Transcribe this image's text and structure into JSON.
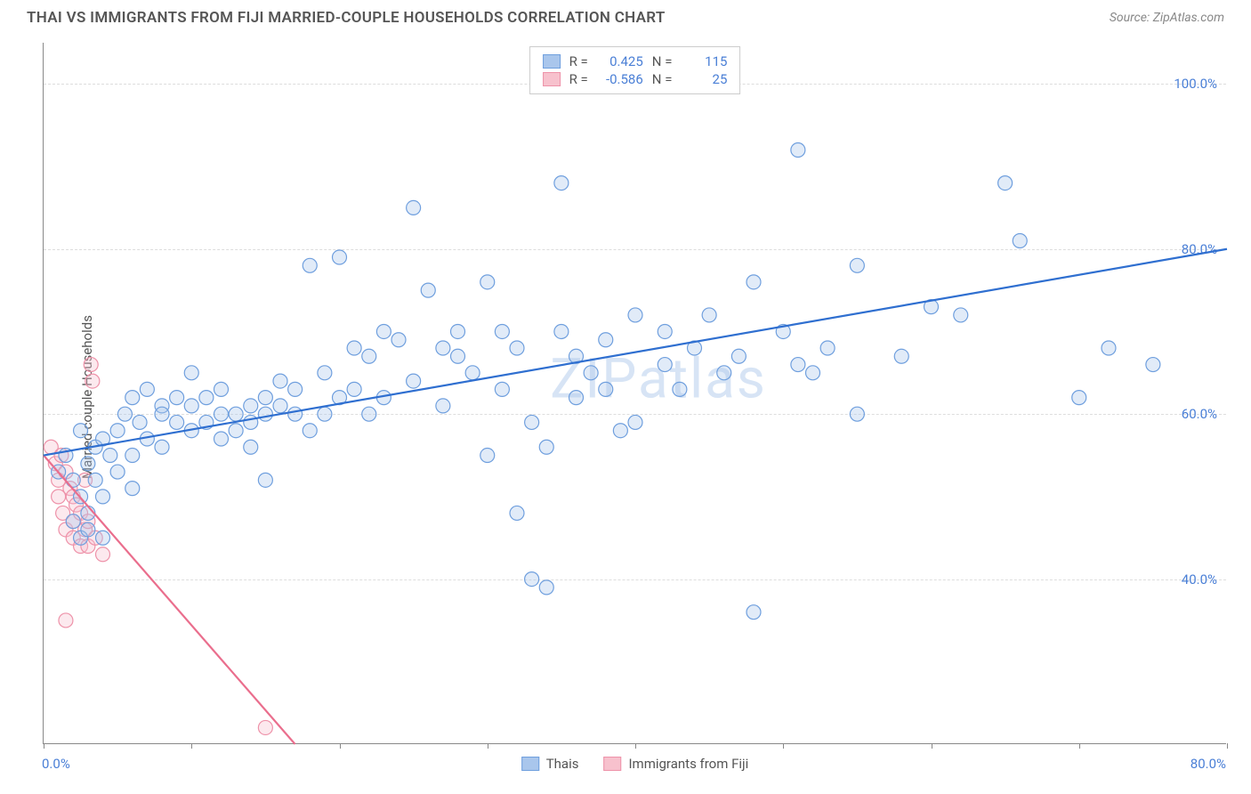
{
  "title": "THAI VS IMMIGRANTS FROM FIJI MARRIED-COUPLE HOUSEHOLDS CORRELATION CHART",
  "source_label": "Source: ZipAtlas.com",
  "watermark": "ZIPatlas",
  "ylabel": "Married-couple Households",
  "chart": {
    "type": "scatter",
    "background_color": "#ffffff",
    "grid_color": "#dddddd",
    "axis_color": "#888888",
    "label_color": "#555555",
    "tick_label_color": "#4a7fd6",
    "tick_fontsize": 15,
    "title_fontsize": 17,
    "xlim": [
      0,
      80
    ],
    "ylim": [
      20,
      105
    ],
    "ytick_values": [
      40,
      60,
      80,
      100
    ],
    "ytick_labels": [
      "40.0%",
      "60.0%",
      "80.0%",
      "100.0%"
    ],
    "xtick_values": [
      0,
      10,
      20,
      30,
      40,
      50,
      60,
      70,
      80
    ],
    "xtick_label_left": "0.0%",
    "xtick_label_right": "80.0%",
    "marker_radius": 8,
    "marker_fill_opacity": 0.35,
    "marker_stroke_width": 1.2,
    "line_width": 2.2,
    "series": [
      {
        "name": "Thais",
        "color_fill": "#a9c6ec",
        "color_stroke": "#6f9fde",
        "line_color": "#2f6fd0",
        "R": "0.425",
        "N": "115",
        "trend": {
          "x1": 0,
          "y1": 55,
          "x2": 80,
          "y2": 80
        },
        "points": [
          [
            1,
            53
          ],
          [
            1.5,
            55
          ],
          [
            2,
            52
          ],
          [
            2,
            47
          ],
          [
            2.5,
            50
          ],
          [
            2.5,
            58
          ],
          [
            2.5,
            45
          ],
          [
            3,
            54
          ],
          [
            3,
            48
          ],
          [
            3,
            46
          ],
          [
            3.5,
            56
          ],
          [
            3.5,
            52
          ],
          [
            4,
            50
          ],
          [
            4,
            57
          ],
          [
            4,
            45
          ],
          [
            4.5,
            55
          ],
          [
            5,
            53
          ],
          [
            5,
            58
          ],
          [
            5.5,
            60
          ],
          [
            6,
            62
          ],
          [
            6,
            55
          ],
          [
            6,
            51
          ],
          [
            6.5,
            59
          ],
          [
            7,
            57
          ],
          [
            7,
            63
          ],
          [
            8,
            56
          ],
          [
            8,
            61
          ],
          [
            8,
            60
          ],
          [
            9,
            59
          ],
          [
            9,
            62
          ],
          [
            10,
            58
          ],
          [
            10,
            61
          ],
          [
            10,
            65
          ],
          [
            11,
            59
          ],
          [
            11,
            62
          ],
          [
            12,
            60
          ],
          [
            12,
            63
          ],
          [
            12,
            57
          ],
          [
            13,
            60
          ],
          [
            13,
            58
          ],
          [
            14,
            61
          ],
          [
            14,
            59
          ],
          [
            14,
            56
          ],
          [
            15,
            62
          ],
          [
            15,
            60
          ],
          [
            15,
            52
          ],
          [
            16,
            61
          ],
          [
            16,
            64
          ],
          [
            17,
            60
          ],
          [
            17,
            63
          ],
          [
            18,
            78
          ],
          [
            18,
            58
          ],
          [
            19,
            60
          ],
          [
            19,
            65
          ],
          [
            20,
            62
          ],
          [
            20,
            79
          ],
          [
            21,
            63
          ],
          [
            21,
            68
          ],
          [
            22,
            67
          ],
          [
            22,
            60
          ],
          [
            23,
            62
          ],
          [
            23,
            70
          ],
          [
            24,
            69
          ],
          [
            25,
            85
          ],
          [
            25,
            64
          ],
          [
            26,
            75
          ],
          [
            27,
            61
          ],
          [
            27,
            68
          ],
          [
            28,
            67
          ],
          [
            28,
            70
          ],
          [
            29,
            65
          ],
          [
            30,
            76
          ],
          [
            30,
            55
          ],
          [
            31,
            63
          ],
          [
            31,
            70
          ],
          [
            32,
            68
          ],
          [
            32,
            48
          ],
          [
            33,
            59
          ],
          [
            33,
            40
          ],
          [
            34,
            56
          ],
          [
            34,
            39
          ],
          [
            35,
            70
          ],
          [
            35,
            88
          ],
          [
            36,
            67
          ],
          [
            36,
            62
          ],
          [
            37,
            65
          ],
          [
            38,
            63
          ],
          [
            38,
            69
          ],
          [
            39,
            58
          ],
          [
            40,
            59
          ],
          [
            40,
            72
          ],
          [
            42,
            66
          ],
          [
            42,
            70
          ],
          [
            43,
            63
          ],
          [
            44,
            68
          ],
          [
            45,
            72
          ],
          [
            46,
            65
          ],
          [
            47,
            67
          ],
          [
            48,
            76
          ],
          [
            48,
            36
          ],
          [
            50,
            70
          ],
          [
            51,
            92
          ],
          [
            51,
            66
          ],
          [
            52,
            65
          ],
          [
            53,
            68
          ],
          [
            55,
            60
          ],
          [
            55,
            78
          ],
          [
            58,
            67
          ],
          [
            60,
            73
          ],
          [
            62,
            72
          ],
          [
            65,
            88
          ],
          [
            66,
            81
          ],
          [
            70,
            62
          ],
          [
            72,
            68
          ],
          [
            75,
            66
          ]
        ]
      },
      {
        "name": "Immigrants from Fiji",
        "color_fill": "#f7c1cd",
        "color_stroke": "#ee92a9",
        "line_color": "#ea6e8d",
        "R": "-0.586",
        "N": "25",
        "trend": {
          "x1": 0,
          "y1": 55,
          "x2": 17,
          "y2": 20
        },
        "points": [
          [
            0.5,
            56
          ],
          [
            0.8,
            54
          ],
          [
            1,
            52
          ],
          [
            1,
            50
          ],
          [
            1.2,
            55
          ],
          [
            1.3,
            48
          ],
          [
            1.5,
            53
          ],
          [
            1.5,
            46
          ],
          [
            1.8,
            51
          ],
          [
            2,
            50
          ],
          [
            2,
            47
          ],
          [
            2,
            45
          ],
          [
            2.2,
            49
          ],
          [
            2.5,
            48
          ],
          [
            2.5,
            44
          ],
          [
            2.8,
            46
          ],
          [
            3,
            47
          ],
          [
            3,
            44
          ],
          [
            3.2,
            66
          ],
          [
            3.3,
            64
          ],
          [
            3.5,
            45
          ],
          [
            4,
            43
          ],
          [
            1.5,
            35
          ],
          [
            15,
            22
          ],
          [
            2.8,
            52
          ]
        ]
      }
    ]
  },
  "legend": {
    "series1_label": "Thais",
    "series2_label": "Immigrants from Fiji"
  },
  "stats_labels": {
    "R": "R =",
    "N": "N ="
  }
}
